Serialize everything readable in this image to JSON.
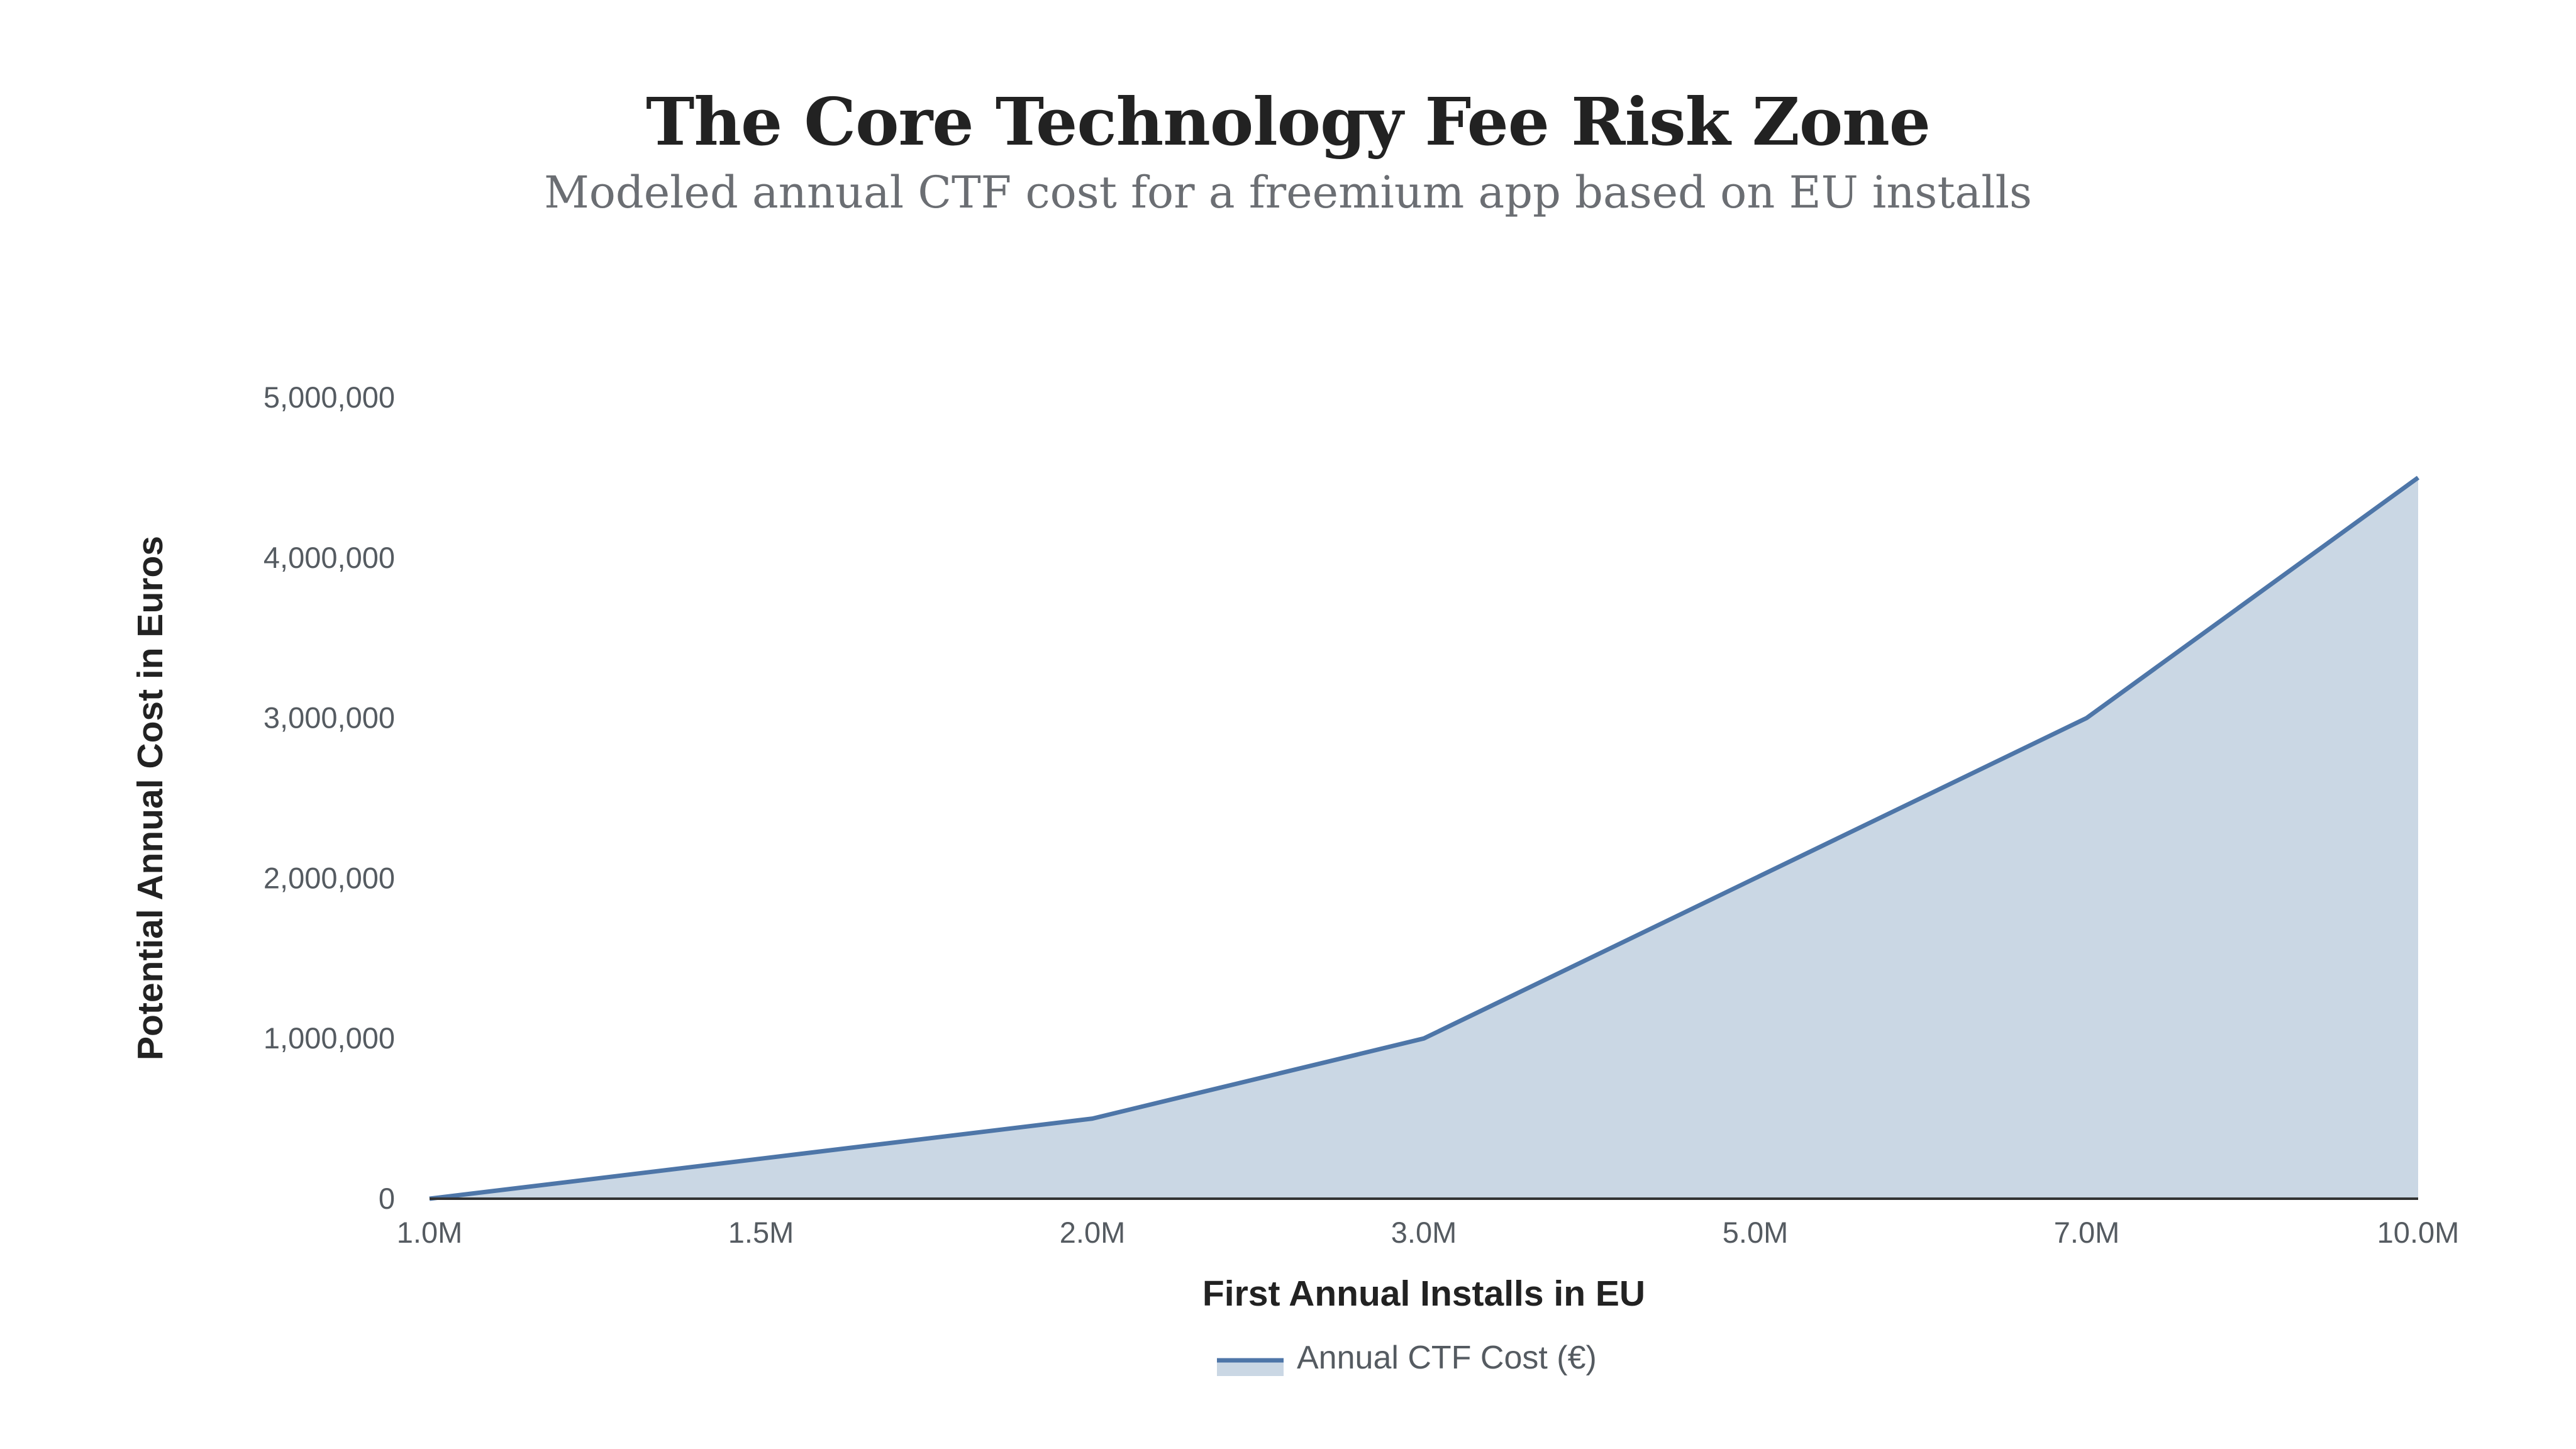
{
  "chart_data": {
    "type": "area",
    "title": "The Core Technology Fee Risk Zone",
    "subtitle": "Modeled annual CTF cost for a freemium app based on EU installs",
    "xlabel": "First Annual Installs in EU",
    "ylabel": "Potential Annual Cost in Euros",
    "categories": [
      "1.0M",
      "1.5M",
      "2.0M",
      "3.0M",
      "5.0M",
      "7.0M",
      "10.0M"
    ],
    "series": [
      {
        "name": "Annual CTF Cost (€)",
        "values": [
          0,
          250000,
          500000,
          1000000,
          2000000,
          3000000,
          4500000
        ]
      }
    ],
    "ylim": [
      0,
      5000000
    ],
    "yticks": [
      0,
      1000000,
      2000000,
      3000000,
      4000000,
      5000000
    ],
    "ytick_labels": [
      "0",
      "1,000,000",
      "2,000,000",
      "3,000,000",
      "4,000,000",
      "5,000,000"
    ],
    "grid": false,
    "legend_position": "bottom",
    "colors": {
      "line": "#4e76a8",
      "fill": "#cad7e4",
      "axis": "#333333"
    }
  }
}
